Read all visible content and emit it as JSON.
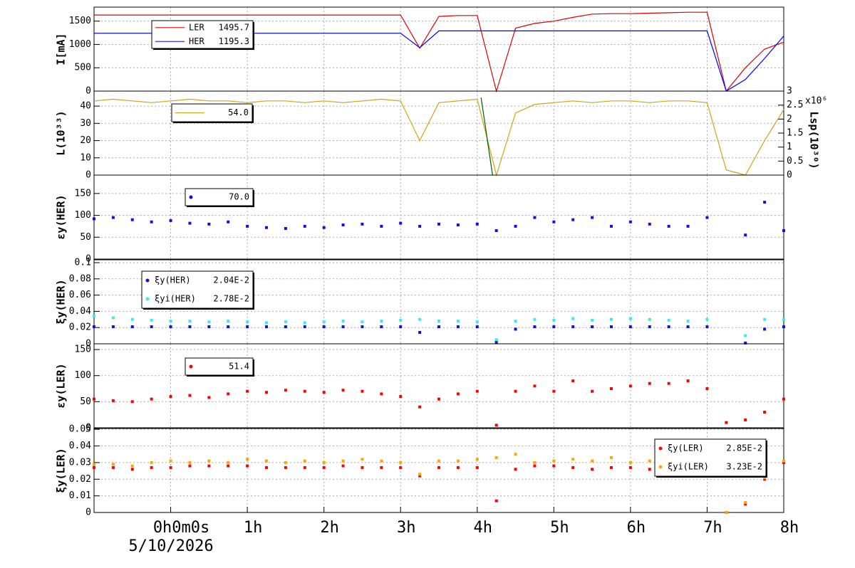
{
  "chart_data": [
    {
      "type": "line",
      "ylabel": "I[mA]",
      "ylim": [
        0,
        1800
      ],
      "yticks": [
        0,
        500,
        1000,
        1500
      ],
      "x": [
        -1,
        -0.75,
        -0.5,
        -0.25,
        0,
        0.25,
        0.5,
        0.75,
        1,
        1.25,
        1.5,
        1.75,
        2,
        2.25,
        2.5,
        2.75,
        3,
        3.25,
        3.5,
        3.75,
        4,
        4.25,
        4.5,
        4.75,
        5,
        5.25,
        5.5,
        5.75,
        6,
        6.25,
        6.5,
        6.75,
        7,
        7.25,
        7.5,
        7.75,
        8
      ],
      "series": [
        {
          "name": "LER",
          "legend_value": "1495.7",
          "color": "#dd0000",
          "values": [
            1630,
            1630,
            1630,
            1630,
            1630,
            1630,
            1630,
            1630,
            1630,
            1630,
            1630,
            1630,
            1630,
            1630,
            1630,
            1630,
            1630,
            920,
            1600,
            1620,
            1620,
            0,
            1350,
            1450,
            1500,
            1580,
            1650,
            1660,
            1660,
            1670,
            1680,
            1690,
            1690,
            0,
            500,
            900,
            1050
          ]
        },
        {
          "name": "HER",
          "legend_value": "1195.3",
          "color": "#0000ff",
          "values": [
            1240,
            1240,
            1240,
            1240,
            1240,
            1240,
            1240,
            1240,
            1240,
            1240,
            1240,
            1240,
            1240,
            1240,
            1240,
            1240,
            1240,
            930,
            1290,
            1290,
            1290,
            1290,
            1290,
            1290,
            1290,
            1290,
            1290,
            1290,
            1290,
            1290,
            1290,
            1290,
            1290,
            0,
            250,
            700,
            1180
          ]
        }
      ]
    },
    {
      "type": "line",
      "ylabel": "L(10³³)",
      "ylim": [
        0,
        48.7
      ],
      "yticks": [
        0,
        10,
        20,
        30,
        40
      ],
      "y2label": "Lsp(10³⁰)",
      "y2unit": "x10⁶",
      "y2lim": [
        0,
        3
      ],
      "y2ticks": [
        0,
        0.5,
        1,
        1.5,
        2,
        2.5,
        3
      ],
      "x": [
        -1,
        -0.75,
        -0.5,
        -0.25,
        0,
        0.25,
        0.5,
        0.75,
        1,
        1.25,
        1.5,
        1.75,
        2,
        2.25,
        2.5,
        2.75,
        3,
        3.25,
        3.5,
        3.75,
        4,
        4.25,
        4.5,
        4.75,
        5,
        5.25,
        5.5,
        5.75,
        6,
        6.25,
        6.5,
        6.75,
        7,
        7.25,
        7.5,
        7.75,
        8
      ],
      "series": [
        {
          "legend_value": "54.0",
          "color": "#d4a017",
          "values": [
            43,
            44,
            43,
            42,
            43,
            44,
            43,
            43,
            42,
            43,
            43,
            42,
            43,
            42,
            43,
            44,
            43,
            20,
            42,
            43,
            44,
            0,
            36,
            41,
            42,
            43,
            42,
            43,
            43,
            42,
            43,
            43,
            42,
            3,
            0,
            20,
            38
          ]
        },
        {
          "color": "#006400",
          "x": [
            4.05,
            4.2
          ],
          "values": [
            45,
            0
          ]
        }
      ]
    },
    {
      "type": "scatter",
      "ylabel": "εy(HER)",
      "ylim": [
        0,
        192
      ],
      "yticks": [
        0,
        50,
        100,
        150
      ],
      "x": [
        -1,
        -0.75,
        -0.5,
        -0.25,
        0,
        0.25,
        0.5,
        0.75,
        1,
        1.25,
        1.5,
        1.75,
        2,
        2.25,
        2.5,
        2.75,
        3,
        3.25,
        3.5,
        3.75,
        4,
        4.25,
        4.5,
        4.75,
        5,
        5.25,
        5.5,
        5.75,
        6,
        6.25,
        6.5,
        6.75,
        7,
        7.25,
        7.5,
        7.75,
        8
      ],
      "series": [
        {
          "legend_value": "70.0",
          "color": "#1010e0",
          "values": [
            92,
            95,
            90,
            85,
            88,
            82,
            80,
            85,
            75,
            72,
            70,
            75,
            72,
            78,
            80,
            75,
            82,
            75,
            80,
            78,
            80,
            65,
            75,
            95,
            85,
            90,
            95,
            75,
            85,
            80,
            75,
            75,
            95,
            null,
            55,
            130,
            65
          ]
        }
      ]
    },
    {
      "type": "scatter",
      "ylabel": "ξy(HER)",
      "ylim": [
        0,
        0.1035
      ],
      "yticks": [
        0,
        0.02,
        0.04,
        0.06,
        0.08,
        0.1
      ],
      "x": [
        -1,
        -0.75,
        -0.5,
        -0.25,
        0,
        0.25,
        0.5,
        0.75,
        1,
        1.25,
        1.5,
        1.75,
        2,
        2.25,
        2.5,
        2.75,
        3,
        3.25,
        3.5,
        3.75,
        4,
        4.25,
        4.5,
        4.75,
        5,
        5.25,
        5.5,
        5.75,
        6,
        6.25,
        6.5,
        6.75,
        7,
        7.25,
        7.5,
        7.75,
        8
      ],
      "series": [
        {
          "name": "ξy(HER)",
          "legend_value": "2.04E-2",
          "color": "#1010e0",
          "values": [
            0.021,
            0.021,
            0.021,
            0.021,
            0.021,
            0.021,
            0.021,
            0.021,
            0.021,
            0.021,
            0.021,
            0.021,
            0.021,
            0.021,
            0.021,
            0.021,
            0.021,
            0.014,
            0.021,
            0.021,
            0.021,
            0.002,
            0.018,
            0.021,
            0.021,
            0.021,
            0.021,
            0.021,
            0.021,
            0.021,
            0.021,
            0.021,
            0.021,
            null,
            0.001,
            0.018,
            0.021
          ]
        },
        {
          "name": "ξyi(HER)",
          "legend_value": "2.78E-2",
          "color": "#33eeee",
          "values": [
            0.034,
            0.032,
            0.03,
            0.029,
            0.028,
            0.028,
            0.027,
            0.028,
            0.027,
            0.026,
            0.027,
            0.026,
            0.027,
            0.028,
            0.027,
            0.028,
            0.029,
            0.03,
            0.028,
            0.028,
            0.027,
            0.005,
            0.028,
            0.03,
            0.029,
            0.031,
            0.029,
            0.03,
            0.031,
            0.03,
            0.029,
            0.028,
            0.03,
            null,
            0.01,
            0.03,
            0.03
          ]
        }
      ]
    },
    {
      "type": "scatter",
      "ylabel": "εy(LER)",
      "ylim": [
        0,
        161
      ],
      "yticks": [
        0,
        50,
        100,
        150
      ],
      "x": [
        -1,
        -0.75,
        -0.5,
        -0.25,
        0,
        0.25,
        0.5,
        0.75,
        1,
        1.25,
        1.5,
        1.75,
        2,
        2.25,
        2.5,
        2.75,
        3,
        3.25,
        3.5,
        3.75,
        4,
        4.25,
        4.5,
        4.75,
        5,
        5.25,
        5.5,
        5.75,
        6,
        6.25,
        6.5,
        6.75,
        7,
        7.25,
        7.5,
        7.75,
        8
      ],
      "series": [
        {
          "legend_value": "51.4",
          "color": "#ff0000",
          "values": [
            55,
            52,
            50,
            55,
            60,
            62,
            58,
            65,
            70,
            68,
            72,
            70,
            68,
            72,
            70,
            65,
            60,
            40,
            55,
            65,
            70,
            5,
            70,
            80,
            70,
            90,
            70,
            75,
            80,
            85,
            85,
            90,
            75,
            10,
            15,
            30,
            55
          ]
        }
      ]
    },
    {
      "type": "scatter",
      "ylabel": "ξy(LER)",
      "ylim": [
        0,
        0.0505
      ],
      "yticks": [
        0,
        0.01,
        0.02,
        0.03,
        0.04,
        0.05
      ],
      "xlim": [
        -1,
        8
      ],
      "xticks": [
        {
          "value": 0,
          "label": "0h0m0s"
        },
        {
          "value": 1,
          "label": "1h"
        },
        {
          "value": 2,
          "label": "2h"
        },
        {
          "value": 3,
          "label": "3h"
        },
        {
          "value": 4,
          "label": "4h"
        },
        {
          "value": 5,
          "label": "5h"
        },
        {
          "value": 6,
          "label": "6h"
        },
        {
          "value": 7,
          "label": "7h"
        },
        {
          "value": 8,
          "label": "8h"
        }
      ],
      "date": "5/10/2026",
      "x": [
        -1,
        -0.75,
        -0.5,
        -0.25,
        0,
        0.25,
        0.5,
        0.75,
        1,
        1.25,
        1.5,
        1.75,
        2,
        2.25,
        2.5,
        2.75,
        3,
        3.25,
        3.5,
        3.75,
        4,
        4.25,
        4.5,
        4.75,
        5,
        5.25,
        5.5,
        5.75,
        6,
        6.25,
        6.5,
        6.75,
        7,
        7.25,
        7.5,
        7.75,
        8
      ],
      "series": [
        {
          "name": "ξy(LER)",
          "legend_value": "2.85E-2",
          "color": "#ff0000",
          "values": [
            0.027,
            0.027,
            0.026,
            0.027,
            0.027,
            0.028,
            0.028,
            0.028,
            0.028,
            0.027,
            0.027,
            0.027,
            0.027,
            0.028,
            0.027,
            0.027,
            0.027,
            0.022,
            0.027,
            0.027,
            0.027,
            0.007,
            0.026,
            0.028,
            0.028,
            0.027,
            0.026,
            0.027,
            0.027,
            0.026,
            0.027,
            0.027,
            0.027,
            0,
            0.005,
            0.02,
            0.03
          ]
        },
        {
          "name": "ξyi(LER)",
          "legend_value": "3.23E-2",
          "color": "#ffa500",
          "values": [
            0.029,
            0.029,
            0.028,
            0.03,
            0.031,
            0.03,
            0.031,
            0.03,
            0.032,
            0.031,
            0.03,
            0.031,
            0.03,
            0.031,
            0.032,
            0.031,
            0.03,
            0.023,
            0.031,
            0.031,
            0.032,
            0.033,
            0.035,
            0.03,
            0.031,
            0.032,
            0.031,
            0.033,
            0.03,
            0.031,
            0.032,
            0.03,
            0.031,
            0,
            0.006,
            0.021,
            0.031
          ]
        }
      ]
    }
  ]
}
